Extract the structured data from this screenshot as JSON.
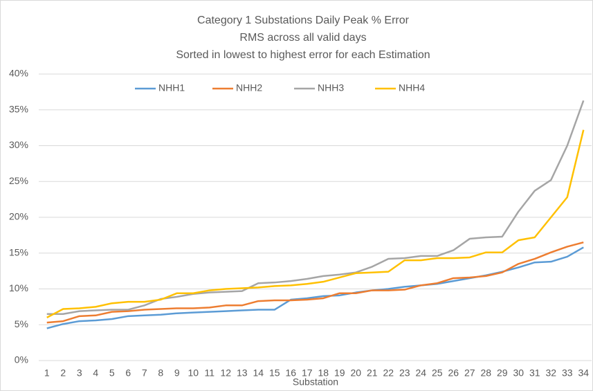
{
  "chart_data": {
    "type": "line",
    "title": [
      "Category 1 Substations  Daily Peak % Error",
      "RMS across all  valid days",
      "Sorted in lowest to highest error for each Estimation"
    ],
    "x_label": "Substation",
    "categories": [
      "1",
      "2",
      "3",
      "4",
      "5",
      "6",
      "7",
      "8",
      "9",
      "10",
      "11",
      "12",
      "13",
      "14",
      "15",
      "16",
      "17",
      "18",
      "19",
      "20",
      "21",
      "22",
      "23",
      "24",
      "25",
      "26",
      "27",
      "28",
      "29",
      "30",
      "31",
      "32",
      "33",
      "34"
    ],
    "ylim": [
      0,
      40
    ],
    "yticks": [
      {
        "value": 0,
        "label": "0%"
      },
      {
        "value": 5,
        "label": "5%"
      },
      {
        "value": 10,
        "label": "10%"
      },
      {
        "value": 15,
        "label": "15%"
      },
      {
        "value": 20,
        "label": "20%"
      },
      {
        "value": 25,
        "label": "25%"
      },
      {
        "value": 30,
        "label": "30%"
      },
      {
        "value": 35,
        "label": "35%"
      },
      {
        "value": 40,
        "label": "40%"
      }
    ],
    "grid": true,
    "legend": "top",
    "series": [
      {
        "name": "NHH1",
        "color": "#5b9bd5",
        "values": [
          4.5,
          5.1,
          5.5,
          5.6,
          5.8,
          6.2,
          6.3,
          6.4,
          6.6,
          6.7,
          6.8,
          6.9,
          7.0,
          7.1,
          7.1,
          8.5,
          8.7,
          9.0,
          9.1,
          9.5,
          9.8,
          10.0,
          10.3,
          10.5,
          10.7,
          11.1,
          11.5,
          11.9,
          12.4,
          13.0,
          13.7,
          13.8,
          14.5,
          15.8
        ]
      },
      {
        "name": "NHH2",
        "color": "#ed7d31",
        "values": [
          5.3,
          5.5,
          6.2,
          6.3,
          6.8,
          6.9,
          7.1,
          7.2,
          7.3,
          7.3,
          7.4,
          7.7,
          7.7,
          8.3,
          8.4,
          8.4,
          8.5,
          8.7,
          9.4,
          9.4,
          9.8,
          9.8,
          9.9,
          10.5,
          10.8,
          11.5,
          11.6,
          11.8,
          12.3,
          13.5,
          14.2,
          15.1,
          15.9,
          16.5
        ]
      },
      {
        "name": "NHH3",
        "color": "#a5a5a5",
        "values": [
          6.5,
          6.5,
          6.9,
          7.0,
          7.1,
          7.1,
          7.7,
          8.6,
          8.9,
          9.3,
          9.5,
          9.6,
          9.7,
          10.8,
          10.9,
          11.1,
          11.4,
          11.8,
          12.0,
          12.3,
          13.1,
          14.2,
          14.3,
          14.6,
          14.6,
          15.4,
          17.0,
          17.2,
          17.3,
          20.8,
          23.7,
          25.2,
          30.0,
          36.3
        ]
      },
      {
        "name": "NHH4",
        "color": "#ffc000",
        "values": [
          6.0,
          7.2,
          7.3,
          7.5,
          8.0,
          8.2,
          8.2,
          8.5,
          9.4,
          9.4,
          9.8,
          10.0,
          10.1,
          10.2,
          10.4,
          10.5,
          10.7,
          11.0,
          11.6,
          12.2,
          12.3,
          12.4,
          14.0,
          14.0,
          14.3,
          14.3,
          14.4,
          15.1,
          15.1,
          16.8,
          17.2,
          20.0,
          22.8,
          32.2
        ]
      }
    ]
  }
}
